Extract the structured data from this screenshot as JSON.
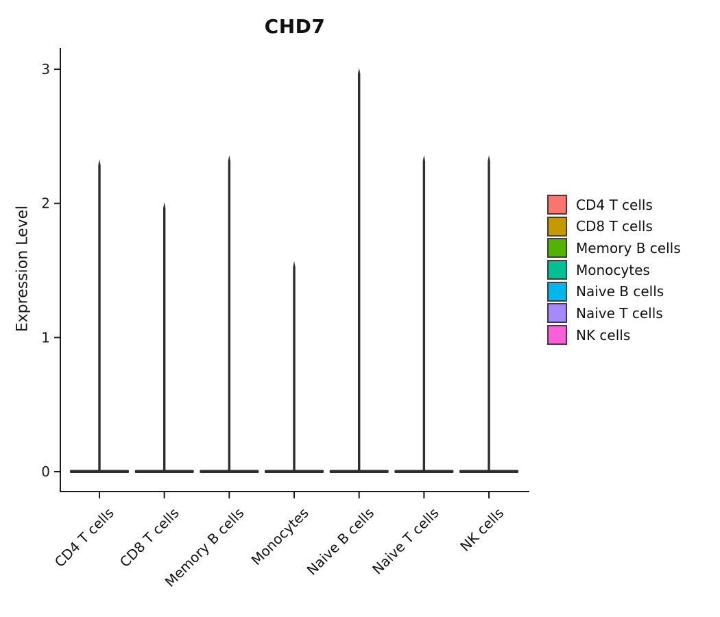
{
  "chart_data": {
    "type": "violin",
    "title": "CHD7",
    "xlabel": "",
    "ylabel": "Expression Level",
    "categories": [
      "CD4 T cells",
      "CD8 T cells",
      "Memory B cells",
      "Monocytes",
      "Naive B cells",
      "Naive T cells",
      "NK cells"
    ],
    "series": [
      {
        "name": "violin_max_expression",
        "values": [
          2.33,
          2.01,
          2.36,
          1.57,
          3.01,
          2.36,
          2.36
        ]
      },
      {
        "name": "violin_bulk_expression",
        "values": [
          0,
          0,
          0,
          0,
          0,
          0,
          0
        ]
      }
    ],
    "colors": [
      "#F8766D",
      "#C49A00",
      "#53B400",
      "#00C094",
      "#00B6EB",
      "#A58AFF",
      "#FB61D7"
    ],
    "violin_draw_color": "#2e2e2e",
    "axis_color": "#1a1a1a",
    "y_ticks": [
      0,
      1,
      2,
      3
    ],
    "ylim": [
      0,
      3.05
    ],
    "grid": "off",
    "x_tick_angle": 45,
    "legend_position": "right",
    "legend": [
      {
        "label": "CD4 T cells",
        "color": "#F8766D"
      },
      {
        "label": "CD8 T cells",
        "color": "#C49A00"
      },
      {
        "label": "Memory B cells",
        "color": "#53B400"
      },
      {
        "label": "Monocytes",
        "color": "#00C094"
      },
      {
        "label": "Naive B cells",
        "color": "#00B6EB"
      },
      {
        "label": "Naive T cells",
        "color": "#A58AFF"
      },
      {
        "label": "NK cells",
        "color": "#FB61D7"
      }
    ]
  }
}
